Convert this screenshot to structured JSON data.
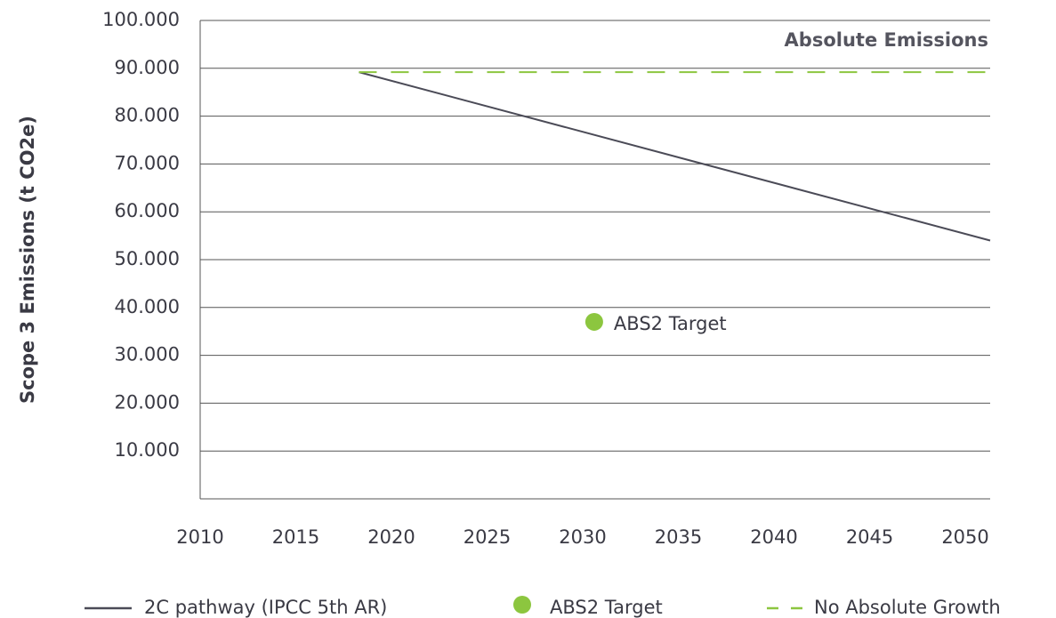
{
  "chart_data": {
    "type": "line",
    "title": "Absolute Emissions",
    "y_label": "Scope 3 Emissions (t CO2e)",
    "xlim": [
      2010,
      2051.3
    ],
    "xticks": [
      2010,
      2015,
      2020,
      2025,
      2030,
      2035,
      2040,
      2045,
      2050
    ],
    "ylim": [
      0,
      100000
    ],
    "yticks": [
      {
        "value": 10000,
        "label": "10.000"
      },
      {
        "value": 20000,
        "label": "20.000"
      },
      {
        "value": 30000,
        "label": "30.000"
      },
      {
        "value": 40000,
        "label": "40.000"
      },
      {
        "value": 50000,
        "label": "50.000"
      },
      {
        "value": 60000,
        "label": "60.000"
      },
      {
        "value": 70000,
        "label": "70.000"
      },
      {
        "value": 80000,
        "label": "80.000"
      },
      {
        "value": 90000,
        "label": "90.000"
      },
      {
        "value": 100000,
        "label": "100.000"
      }
    ],
    "grid": true,
    "legend": "bottom",
    "series": [
      {
        "name": "2C pathway (IPCC 5th AR)",
        "color": "#4b4b57",
        "style": "solid",
        "x": [
          2018.3,
          2051.3
        ],
        "values": [
          89200,
          54000
        ]
      },
      {
        "name": "ABS2 Target",
        "color": "#8cc63f",
        "style": "marker",
        "x": [
          2030.6
        ],
        "values": [
          37000
        ],
        "point_label": "ABS2 Target"
      },
      {
        "name": "No Absolute Growth",
        "color": "#8cc63f",
        "style": "dashed",
        "x": [
          2018.3,
          2051.3
        ],
        "values": [
          89200,
          89200
        ]
      }
    ]
  }
}
